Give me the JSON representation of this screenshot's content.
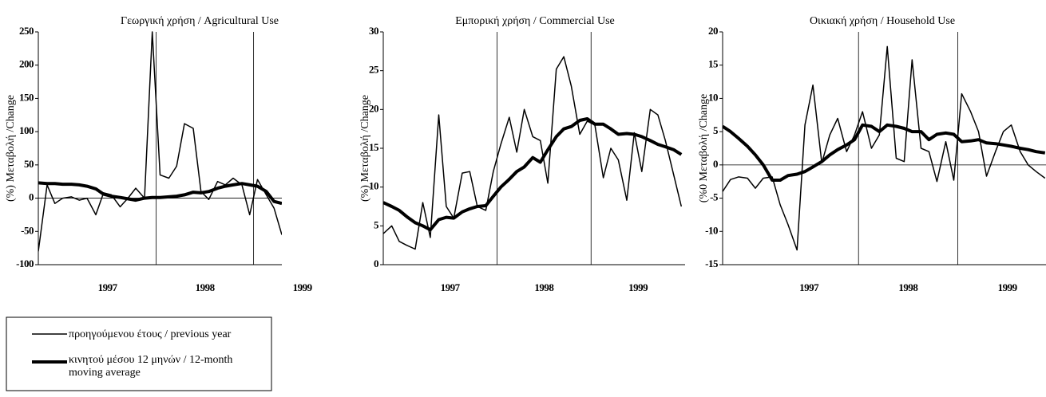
{
  "chart_data": [
    {
      "type": "line",
      "title": "Γεωργική χρήση / Agricultural Use",
      "ylabel": "(%) Μεταβολή /Change",
      "x": [
        1996.79,
        1996.88,
        1996.96,
        1997.04,
        1997.13,
        1997.21,
        1997.29,
        1997.38,
        1997.46,
        1997.54,
        1997.63,
        1997.71,
        1997.79,
        1997.88,
        1997.96,
        1998.04,
        1998.13,
        1998.21,
        1998.29,
        1998.38,
        1998.46,
        1998.54,
        1998.63,
        1998.71,
        1998.79,
        1998.88,
        1998.96,
        1999.04,
        1999.13,
        1999.21,
        1999.29
      ],
      "xlim": [
        1996.79,
        1999.29
      ],
      "xticks": [
        {
          "value": 1997.5,
          "label": "1997"
        },
        {
          "value": 1998.5,
          "label": "1998"
        },
        {
          "value": 1999.5,
          "label": "1999"
        }
      ],
      "vlines": [
        1998,
        1999
      ],
      "ylim": [
        -100,
        250
      ],
      "yticks": [
        -100,
        -50,
        0,
        50,
        100,
        150,
        200,
        250
      ],
      "series": [
        {
          "name": "προηγούμενου έτους / previous year",
          "color": "#000000",
          "width": 1.5,
          "values": [
            -80,
            20,
            -8,
            0,
            2,
            -3,
            0,
            -25,
            8,
            5,
            -13,
            0,
            15,
            0,
            250,
            35,
            30,
            48,
            112,
            105,
            10,
            -2,
            25,
            20,
            30,
            20,
            -25,
            28,
            5,
            -15,
            -55
          ]
        },
        {
          "name": "κινητού μέσου 12 μηνών / 12-month moving average",
          "color": "#000000",
          "width": 4,
          "values": [
            23,
            22,
            22,
            21,
            21,
            20,
            18,
            14,
            6,
            3,
            1,
            -1,
            -3,
            0,
            1,
            1,
            2,
            3,
            5,
            9,
            8,
            10,
            15,
            18,
            20,
            22,
            20,
            18,
            10,
            -5,
            -8
          ]
        }
      ]
    },
    {
      "type": "line",
      "title": "Εμπορική χρήση / Commercial Use",
      "ylabel": "(%) Μεταβολή /Change",
      "x": [
        1996.79,
        1996.88,
        1996.96,
        1997.04,
        1997.13,
        1997.21,
        1997.29,
        1997.38,
        1997.46,
        1997.54,
        1997.63,
        1997.71,
        1997.79,
        1997.88,
        1997.96,
        1998.04,
        1998.13,
        1998.21,
        1998.29,
        1998.38,
        1998.46,
        1998.54,
        1998.63,
        1998.71,
        1998.79,
        1998.88,
        1998.96,
        1999.04,
        1999.13,
        1999.21,
        1999.29,
        1999.38,
        1999.46,
        1999.54,
        1999.63,
        1999.71,
        1999.79,
        1999.88,
        1999.96
      ],
      "xlim": [
        1996.79,
        2000.0
      ],
      "xticks": [
        {
          "value": 1997.5,
          "label": "1997"
        },
        {
          "value": 1998.5,
          "label": "1998"
        },
        {
          "value": 1999.5,
          "label": "1999"
        }
      ],
      "vlines": [
        1998,
        1999
      ],
      "ylim": [
        0,
        30
      ],
      "yticks": [
        0,
        5,
        10,
        15,
        20,
        25,
        30
      ],
      "series": [
        {
          "color": "#000000",
          "width": 1.5,
          "values": [
            4,
            5,
            3,
            2.5,
            2,
            8,
            3.5,
            19.3,
            7.5,
            6,
            11.8,
            12,
            7.5,
            7,
            12,
            15.5,
            19,
            14.5,
            20,
            16.5,
            16,
            10.5,
            25.2,
            26.8,
            23,
            16.8,
            18.5,
            18,
            11.2,
            15,
            13.5,
            8.3,
            17,
            12,
            20,
            19.3,
            16,
            11.5,
            7.5
          ]
        },
        {
          "color": "#000000",
          "width": 4,
          "values": [
            8,
            7.5,
            7,
            6.2,
            5.4,
            5,
            4.5,
            5.8,
            6.1,
            6,
            6.8,
            7.2,
            7.5,
            7.6,
            8.8,
            10,
            11,
            12,
            12.6,
            13.8,
            13.2,
            14.8,
            16.5,
            17.5,
            17.8,
            18.6,
            18.8,
            18.1,
            18.1,
            17.5,
            16.8,
            16.9,
            16.8,
            16.5,
            16,
            15.5,
            15.2,
            14.8,
            14.2
          ]
        }
      ]
    },
    {
      "type": "line",
      "title": "Οικιακή χρήση / Household Use",
      "ylabel": "(%0 Μεταβολή /Change",
      "x": [
        1996.63,
        1996.71,
        1996.79,
        1996.88,
        1996.96,
        1997.04,
        1997.13,
        1997.21,
        1997.29,
        1997.38,
        1997.46,
        1997.54,
        1997.63,
        1997.71,
        1997.79,
        1997.88,
        1997.96,
        1998.04,
        1998.13,
        1998.21,
        1998.29,
        1998.38,
        1998.46,
        1998.54,
        1998.63,
        1998.71,
        1998.79,
        1998.88,
        1998.96,
        1999.04,
        1999.13,
        1999.21,
        1999.29,
        1999.38,
        1999.46,
        1999.54,
        1999.63,
        1999.71,
        1999.79,
        1999.88
      ],
      "xlim": [
        1996.63,
        1999.93
      ],
      "xticks": [
        {
          "value": 1997.5,
          "label": "1997"
        },
        {
          "value": 1998.5,
          "label": "1998"
        },
        {
          "value": 1999.5,
          "label": "1999"
        }
      ],
      "vlines": [
        1998,
        1999
      ],
      "ylim": [
        -15,
        20
      ],
      "yticks": [
        -15,
        -10,
        -5,
        0,
        5,
        10,
        15,
        20
      ],
      "series": [
        {
          "color": "#000000",
          "width": 1.5,
          "values": [
            -4,
            -2.2,
            -1.8,
            -2,
            -3.5,
            -2,
            -1.8,
            -6,
            -9,
            -12.8,
            6,
            12,
            0.3,
            4.5,
            7,
            2,
            4.5,
            8,
            2.5,
            4.5,
            17.8,
            1,
            0.5,
            15.8,
            2.5,
            2,
            -2.5,
            3.5,
            -2.3,
            10.7,
            8,
            5,
            -1.7,
            2,
            5,
            6,
            2,
            0,
            -1,
            -2
          ]
        },
        {
          "color": "#000000",
          "width": 4,
          "values": [
            5.8,
            5,
            4,
            2.8,
            1.5,
            0,
            -2.3,
            -2.3,
            -1.6,
            -1.4,
            -1,
            -0.3,
            0.5,
            1.5,
            2.3,
            3,
            3.8,
            6,
            5.8,
            5,
            6,
            5.8,
            5.5,
            5,
            5,
            3.8,
            4.6,
            4.8,
            4.6,
            3.5,
            3.6,
            3.8,
            3.3,
            3.2,
            3,
            2.8,
            2.5,
            2.3,
            2,
            1.8
          ]
        }
      ]
    }
  ]
}
